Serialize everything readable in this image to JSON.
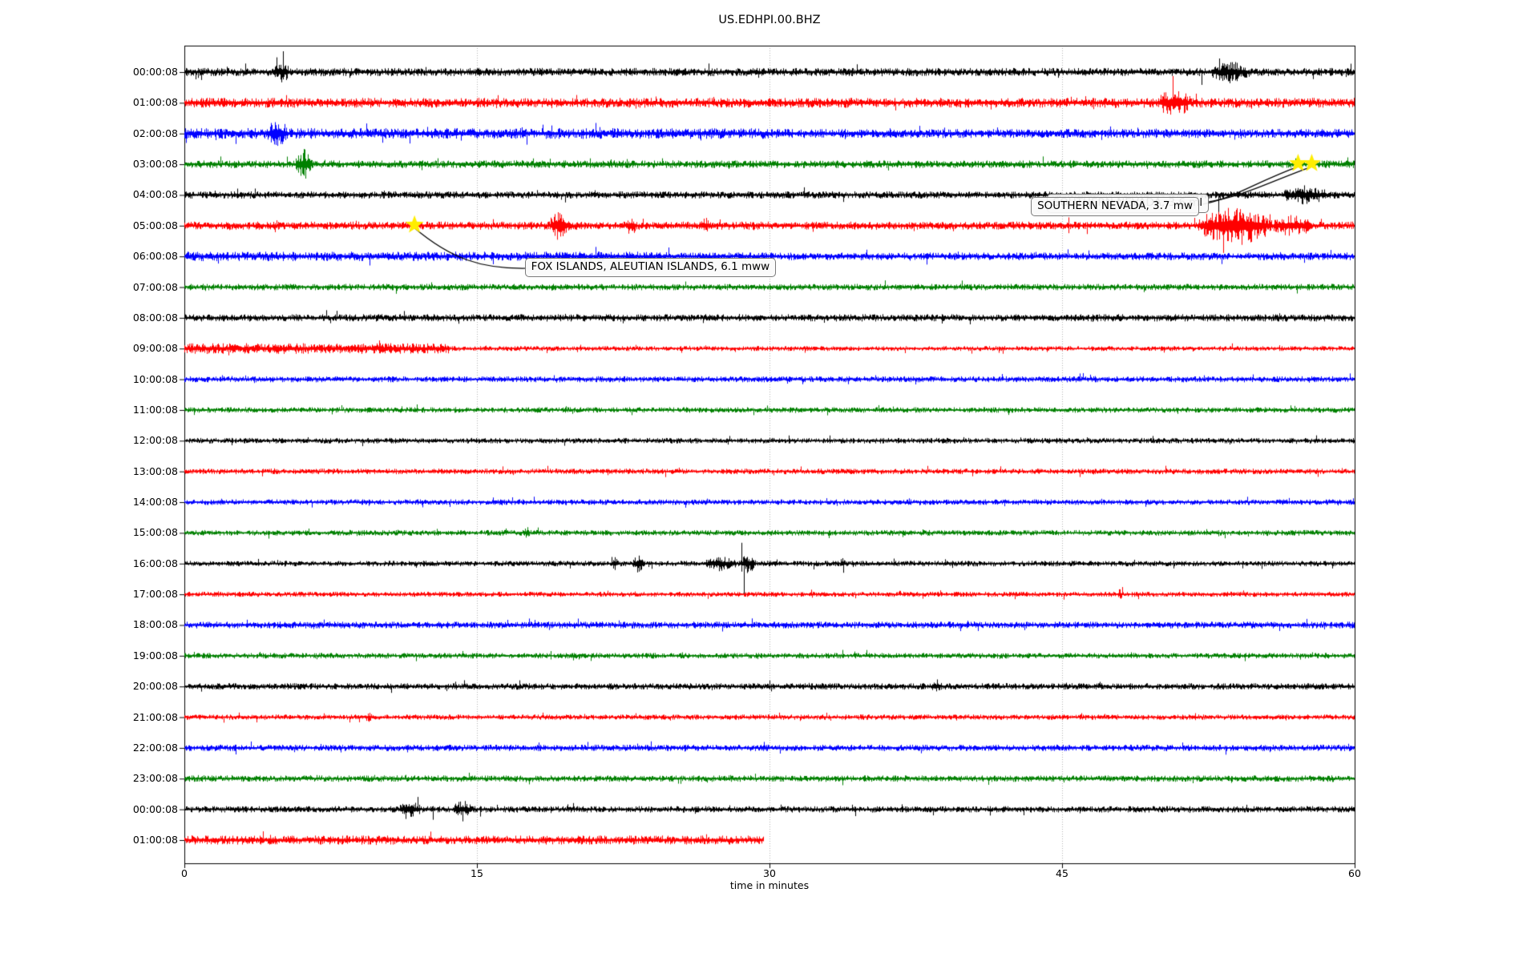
{
  "chart_data": {
    "type": "line",
    "variant": "seismogram-dayplot",
    "title": "US.EDHPI.00.BHZ",
    "xlabel": "time in minutes",
    "xlim": [
      0,
      60
    ],
    "x_ticks": [
      "0",
      "15",
      "30",
      "45",
      "60"
    ],
    "x_tick_values": [
      0,
      15,
      30,
      45,
      60
    ],
    "grid": {
      "vertical_dotted_at_minutes": [
        15,
        30,
        45
      ],
      "color": "#b3b3b3"
    },
    "marker_color": "#ffed00",
    "color_cycle": [
      "#000000",
      "#ff0000",
      "#0000ff",
      "#008000"
    ],
    "y_tick_labels": [
      "00:00:08",
      "01:00:08",
      "02:00:08",
      "03:00:08",
      "04:00:08",
      "05:00:08",
      "06:00:08",
      "07:00:08",
      "08:00:08",
      "09:00:08",
      "10:00:08",
      "11:00:08",
      "12:00:08",
      "13:00:08",
      "14:00:08",
      "15:00:08",
      "16:00:08",
      "17:00:08",
      "18:00:08",
      "19:00:08",
      "20:00:08",
      "21:00:08",
      "22:00:08",
      "23:00:08",
      "00:00:08",
      "01:00:08"
    ],
    "traces": [
      {
        "label": "00:00:08",
        "color": "#000000",
        "base": 3.8,
        "end_minute": 60,
        "events": [
          {
            "type": "burst",
            "t0": 4.6,
            "t1": 5.4,
            "amp": 6
          },
          {
            "type": "spike",
            "t": 5.05,
            "up": 26,
            "dn": 6
          },
          {
            "type": "spike",
            "t": 52.15,
            "up": 3,
            "dn": 16
          },
          {
            "type": "burst",
            "t0": 52.6,
            "t1": 54.6,
            "amp": 7
          },
          {
            "type": "spike",
            "t": 53.3,
            "up": 10,
            "dn": 4
          }
        ]
      },
      {
        "label": "01:00:08",
        "color": "#ff0000",
        "base": 4.6,
        "end_minute": 60,
        "events": [
          {
            "type": "burst",
            "t0": 49.9,
            "t1": 51.6,
            "amp": 9
          }
        ]
      },
      {
        "label": "02:00:08",
        "color": "#0000ff",
        "base": 4.6,
        "end_minute": 60,
        "segments": [
          {
            "t0": 0,
            "t1": 30,
            "amp": 5.0
          },
          {
            "t0": 30,
            "t1": 60,
            "amp": 4.2
          }
        ],
        "events": [
          {
            "type": "burst",
            "t0": 4.2,
            "t1": 5.3,
            "amp": 9
          }
        ]
      },
      {
        "label": "03:00:08",
        "color": "#008000",
        "base": 3.6,
        "end_minute": 60,
        "events": [
          {
            "type": "burst",
            "t0": 5.7,
            "t1": 6.6,
            "amp": 11
          }
        ]
      },
      {
        "label": "04:00:08",
        "color": "#000000",
        "base": 3.4,
        "end_minute": 60,
        "events": [
          {
            "type": "spike",
            "t": 53.0,
            "up": 2,
            "dn": 22
          },
          {
            "type": "burst",
            "t0": 56.3,
            "t1": 58.6,
            "amp": 6
          }
        ]
      },
      {
        "label": "05:00:08",
        "color": "#ff0000",
        "base": 3.8,
        "end_minute": 60,
        "events": [
          {
            "type": "burst",
            "t0": 18.7,
            "t1": 19.7,
            "amp": 11
          },
          {
            "type": "burst",
            "t0": 22.6,
            "t1": 23.2,
            "amp": 6
          },
          {
            "type": "burst",
            "t0": 26.4,
            "t1": 26.9,
            "amp": 5
          },
          {
            "type": "burst",
            "t0": 51.9,
            "t1": 55.8,
            "amp": 16
          },
          {
            "type": "spike",
            "t": 53.25,
            "up": 14,
            "dn": 34
          },
          {
            "type": "spike",
            "t": 52.6,
            "up": 10,
            "dn": 12
          },
          {
            "type": "burst",
            "t0": 55.8,
            "t1": 57.8,
            "amp": 7
          }
        ]
      },
      {
        "label": "06:00:08",
        "color": "#0000ff",
        "base": 4.0,
        "end_minute": 60,
        "segments": [
          {
            "t0": 0,
            "t1": 25,
            "amp": 4.4
          },
          {
            "t0": 25,
            "t1": 60,
            "amp": 3.6
          }
        ],
        "events": []
      },
      {
        "label": "07:00:08",
        "color": "#008000",
        "base": 3.0,
        "end_minute": 60,
        "events": []
      },
      {
        "label": "08:00:08",
        "color": "#000000",
        "base": 3.4,
        "end_minute": 60,
        "events": []
      },
      {
        "label": "09:00:08",
        "color": "#ff0000",
        "base": 2.4,
        "end_minute": 60,
        "segments": [
          {
            "t0": 0,
            "t1": 13.6,
            "amp": 5.0
          },
          {
            "t0": 13.6,
            "t1": 60,
            "amp": 2.3
          }
        ],
        "events": []
      },
      {
        "label": "10:00:08",
        "color": "#0000ff",
        "base": 2.8,
        "end_minute": 60,
        "events": []
      },
      {
        "label": "11:00:08",
        "color": "#008000",
        "base": 2.6,
        "end_minute": 60,
        "events": []
      },
      {
        "label": "12:00:08",
        "color": "#000000",
        "base": 2.6,
        "end_minute": 60,
        "events": []
      },
      {
        "label": "13:00:08",
        "color": "#ff0000",
        "base": 2.6,
        "end_minute": 60,
        "events": []
      },
      {
        "label": "14:00:08",
        "color": "#0000ff",
        "base": 2.6,
        "end_minute": 60,
        "events": []
      },
      {
        "label": "15:00:08",
        "color": "#008000",
        "base": 2.6,
        "end_minute": 60,
        "events": [
          {
            "type": "burst",
            "t0": 17.4,
            "t1": 17.7,
            "amp": 4
          }
        ]
      },
      {
        "label": "16:00:08",
        "color": "#000000",
        "base": 2.6,
        "end_minute": 60,
        "events": [
          {
            "type": "burst",
            "t0": 21.9,
            "t1": 22.2,
            "amp": 6
          },
          {
            "type": "spike",
            "t": 22.05,
            "up": 8,
            "dn": 8
          },
          {
            "type": "burst",
            "t0": 23.0,
            "t1": 23.6,
            "amp": 7
          },
          {
            "type": "spike",
            "t": 23.3,
            "up": 10,
            "dn": 10
          },
          {
            "type": "burst",
            "t0": 26.6,
            "t1": 28.3,
            "amp": 5
          },
          {
            "type": "spike",
            "t": 28.55,
            "up": 26,
            "dn": 10
          },
          {
            "type": "spike",
            "t": 28.68,
            "up": 8,
            "dn": 38
          },
          {
            "type": "burst",
            "t0": 28.4,
            "t1": 29.3,
            "amp": 7
          },
          {
            "type": "burst",
            "t0": 33.6,
            "t1": 33.9,
            "amp": 3
          }
        ]
      },
      {
        "label": "17:00:08",
        "color": "#ff0000",
        "base": 2.4,
        "end_minute": 60,
        "events": [
          {
            "type": "burst",
            "t0": 47.8,
            "t1": 48.1,
            "amp": 3
          }
        ]
      },
      {
        "label": "18:00:08",
        "color": "#0000ff",
        "base": 3.2,
        "end_minute": 60,
        "events": []
      },
      {
        "label": "19:00:08",
        "color": "#008000",
        "base": 2.6,
        "end_minute": 60,
        "events": []
      },
      {
        "label": "20:00:08",
        "color": "#000000",
        "base": 3.0,
        "end_minute": 60,
        "events": [
          {
            "type": "burst",
            "t0": 38.3,
            "t1": 38.8,
            "amp": 4
          }
        ]
      },
      {
        "label": "21:00:08",
        "color": "#ff0000",
        "base": 2.5,
        "end_minute": 60,
        "events": [
          {
            "type": "burst",
            "t0": 9.3,
            "t1": 9.6,
            "amp": 3
          }
        ]
      },
      {
        "label": "22:00:08",
        "color": "#0000ff",
        "base": 3.0,
        "end_minute": 60,
        "events": []
      },
      {
        "label": "23:00:08",
        "color": "#008000",
        "base": 3.0,
        "end_minute": 60,
        "events": []
      },
      {
        "label": "00:00:08",
        "color": "#000000",
        "base": 3.0,
        "end_minute": 60,
        "events": [
          {
            "type": "burst",
            "t0": 11.0,
            "t1": 12.1,
            "amp": 6
          },
          {
            "type": "spike",
            "t": 11.35,
            "up": 6,
            "dn": 12
          },
          {
            "type": "spike",
            "t": 12.75,
            "up": 4,
            "dn": 13
          },
          {
            "type": "burst",
            "t0": 13.8,
            "t1": 14.7,
            "amp": 6
          },
          {
            "type": "spike",
            "t": 14.25,
            "up": 5,
            "dn": 15
          },
          {
            "type": "spike",
            "t": 15.15,
            "up": 4,
            "dn": 9
          }
        ]
      },
      {
        "label": "01:00:08",
        "color": "#ff0000",
        "base": 4.2,
        "end_minute": 29.7,
        "events": []
      }
    ],
    "event_markers": [
      {
        "trace": 5,
        "minute": 11.8
      },
      {
        "trace": 3,
        "minute": 57.1
      },
      {
        "trace": 3,
        "minute": 57.8
      }
    ],
    "annotations": [
      {
        "text": "SOUTHERN NEVADA, 3.6 ml",
        "box_trace": 4,
        "box_minute": 44.2,
        "dy": -1,
        "leader_to": {
          "trace": 3,
          "minute": 57.8
        },
        "leader_from": "right"
      },
      {
        "text": "SOUTHERN NEVADA, 3.7 mw",
        "box_trace": 4,
        "box_minute": 43.4,
        "dy": 3,
        "leader_to": {
          "trace": 3,
          "minute": 57.1
        },
        "leader_from": "right"
      },
      {
        "text": "FOX ISLANDS, ALEUTIAN ISLANDS, 6.1 mww",
        "box_trace": 6,
        "box_minute": 17.45,
        "dy": 2,
        "leader_to": {
          "trace": 5,
          "minute": 11.8
        },
        "leader_from": "left"
      }
    ]
  }
}
